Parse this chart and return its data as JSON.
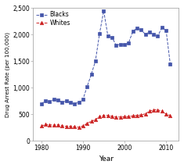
{
  "blacks_years": [
    1980,
    1981,
    1982,
    1983,
    1984,
    1985,
    1986,
    1987,
    1988,
    1989,
    1990,
    1991,
    1992,
    1993,
    1994,
    1995,
    1996,
    1997,
    1998,
    1999,
    2000,
    2001,
    2002,
    2003,
    2004,
    2005,
    2006,
    2007,
    2008,
    2009,
    2010,
    2011
  ],
  "blacks_values": [
    700,
    760,
    740,
    780,
    770,
    730,
    750,
    720,
    700,
    730,
    780,
    1020,
    1250,
    1500,
    2020,
    2450,
    1980,
    1950,
    1800,
    1820,
    1810,
    1850,
    2060,
    2130,
    2090,
    2010,
    2050,
    2000,
    1970,
    2140,
    2080,
    1450
  ],
  "whites_years": [
    1980,
    1981,
    1982,
    1983,
    1984,
    1985,
    1986,
    1987,
    1988,
    1989,
    1990,
    1991,
    1992,
    1993,
    1994,
    1995,
    1996,
    1997,
    1998,
    1999,
    2000,
    2001,
    2002,
    2003,
    2004,
    2005,
    2006,
    2007,
    2008,
    2009,
    2010,
    2011
  ],
  "whites_values": [
    280,
    310,
    305,
    295,
    305,
    285,
    275,
    275,
    265,
    258,
    280,
    330,
    370,
    400,
    460,
    480,
    480,
    465,
    450,
    450,
    455,
    460,
    470,
    480,
    490,
    510,
    560,
    585,
    585,
    560,
    505,
    480
  ],
  "blacks_color": "#4455AA",
  "whites_color": "#CC2222",
  "blacks_marker": "s",
  "whites_marker": "^",
  "xlabel": "Year",
  "ylabel": "Drug Arrest Rate (per 100,000)",
  "ylim": [
    0,
    2500
  ],
  "yticks": [
    0,
    500,
    1000,
    1500,
    2000,
    2500
  ],
  "xlim": [
    1978,
    2013
  ],
  "legend_blacks": "Blacks",
  "legend_whites": "Whites",
  "bg_color": "#FFFFFF",
  "plot_bg_color": "#FFFFFF"
}
